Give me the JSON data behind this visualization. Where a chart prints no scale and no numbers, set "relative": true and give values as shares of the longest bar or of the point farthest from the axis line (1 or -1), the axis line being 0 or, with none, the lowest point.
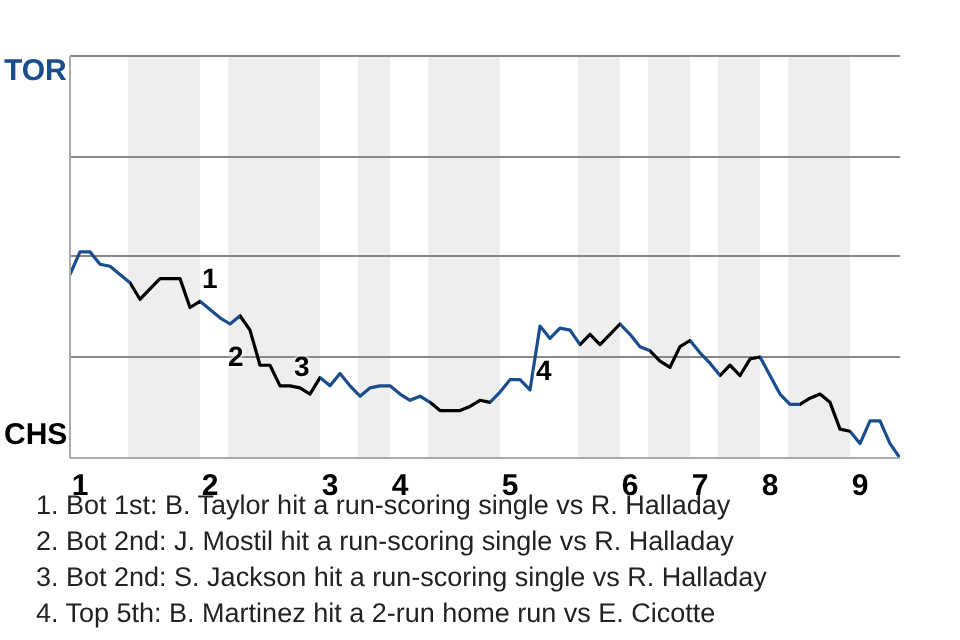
{
  "chart_data": {
    "type": "line",
    "relative": true,
    "categories": [
      null,
      "1",
      null,
      null,
      null,
      null,
      null,
      null,
      null,
      null,
      null,
      null,
      null,
      null,
      "2",
      null,
      null,
      null,
      null,
      null,
      null,
      null,
      null,
      null,
      null,
      null,
      "3",
      null,
      null,
      null,
      null,
      null,
      null,
      "4",
      null,
      null,
      null,
      null,
      null,
      null,
      null,
      null,
      null,
      null,
      "5",
      null,
      null,
      null,
      null,
      null,
      null,
      null,
      null,
      null,
      null,
      null,
      "6",
      null,
      null,
      null,
      null,
      null,
      null,
      "7",
      null,
      null,
      null,
      null,
      null,
      null,
      "8",
      null,
      null,
      null,
      null,
      null,
      null,
      null,
      null,
      "9",
      null,
      null,
      null,
      null
    ],
    "legend": false,
    "marker": "none",
    "line_style": "solid",
    "ref_lines": [
      {
        "axis": "y",
        "value": 0.49,
        "color": "#888888"
      },
      {
        "axis": "y",
        "value": 0.98,
        "color": "#888888"
      },
      {
        "axis": "y",
        "value": 1.46,
        "color": "#888888"
      },
      {
        "axis": "y",
        "value": 1.95,
        "color": "#888888"
      }
    ],
    "series": [
      {
        "colors": [
          "#1a4d8c",
          "#1a4d8c",
          "#1a4d8c",
          "#1a4d8c",
          "#1a4d8c",
          "#1a4d8c",
          "#000000",
          "#000000",
          "#000000",
          "#000000",
          "#000000",
          "#000000",
          "#000000",
          "#1a4d8c",
          "#1a4d8c",
          "#1a4d8c",
          "#1a4d8c",
          "#000000",
          "#000000",
          "#000000",
          "#000000",
          "#000000",
          "#000000",
          "#000000",
          "#000000",
          "#1a4d8c",
          "#1a4d8c",
          "#1a4d8c",
          "#1a4d8c",
          "#1a4d8c",
          "#1a4d8c",
          "#1a4d8c",
          "#1a4d8c",
          "#1a4d8c",
          "#1a4d8c",
          "#1a4d8c",
          "#000000",
          "#000000",
          "#000000",
          "#000000",
          "#000000",
          "#000000",
          "#1a4d8c",
          "#1a4d8c",
          "#1a4d8c",
          "#1a4d8c",
          "#1a4d8c",
          "#1a4d8c",
          "#1a4d8c",
          "#1a4d8c",
          "#1a4d8c",
          "#000000",
          "#000000",
          "#000000",
          "#000000",
          "#1a4d8c",
          "#1a4d8c",
          "#1a4d8c",
          "#000000",
          "#000000",
          "#000000",
          "#000000",
          "#1a4d8c",
          "#1a4d8c",
          "#1a4d8c",
          "#000000",
          "#000000",
          "#000000",
          "#000000",
          "#1a4d8c",
          "#1a4d8c",
          "#1a4d8c",
          "#1a4d8c",
          "#000000",
          "#000000",
          "#000000",
          "#000000",
          "#000000",
          "#1a4d8c",
          "#1a4d8c",
          "#1a4d8c",
          "#1a4d8c",
          "#1a4d8c",
          "#1a4d8c"
        ],
        "values": [
          0.89,
          1,
          1,
          0.94,
          0.93,
          0.89,
          0.85,
          0.77,
          0.82,
          0.87,
          0.87,
          0.87,
          0.73,
          0.76,
          0.72,
          0.68,
          0.65,
          0.69,
          0.62,
          0.45,
          0.45,
          0.35,
          0.35,
          0.34,
          0.31,
          0.39,
          0.35,
          0.41,
          0.35,
          0.3,
          0.34,
          0.35,
          0.35,
          0.31,
          0.28,
          0.3,
          0.27,
          0.23,
          0.23,
          0.23,
          0.25,
          0.28,
          0.27,
          0.32,
          0.38,
          0.38,
          0.33,
          0.64,
          0.58,
          0.63,
          0.62,
          0.55,
          0.6,
          0.55,
          0.6,
          0.65,
          0.6,
          0.54,
          0.52,
          0.47,
          0.44,
          0.54,
          0.57,
          0.51,
          0.46,
          0.4,
          0.45,
          0.4,
          0.48,
          0.49,
          0.4,
          0.31,
          0.26,
          0.26,
          0.29,
          0.31,
          0.27,
          0.14,
          0.13,
          0.07,
          0.18,
          0.18,
          0.07,
          0
        ]
      }
    ],
    "annotations": [
      "TOR",
      "CHS",
      "1",
      "2",
      "3",
      "4",
      "1. Bot 1st: B. Taylor hit a run-scoring single vs R. Halladay",
      "2. Bot 2nd: J. Mostil hit a run-scoring single vs R. Halladay",
      "3. Bot 2nd: S. Jackson hit a run-scoring single vs R. Halladay",
      "4. Top 5th: B. Martinez hit a 2-run home run vs E. Cicotte"
    ]
  }
}
